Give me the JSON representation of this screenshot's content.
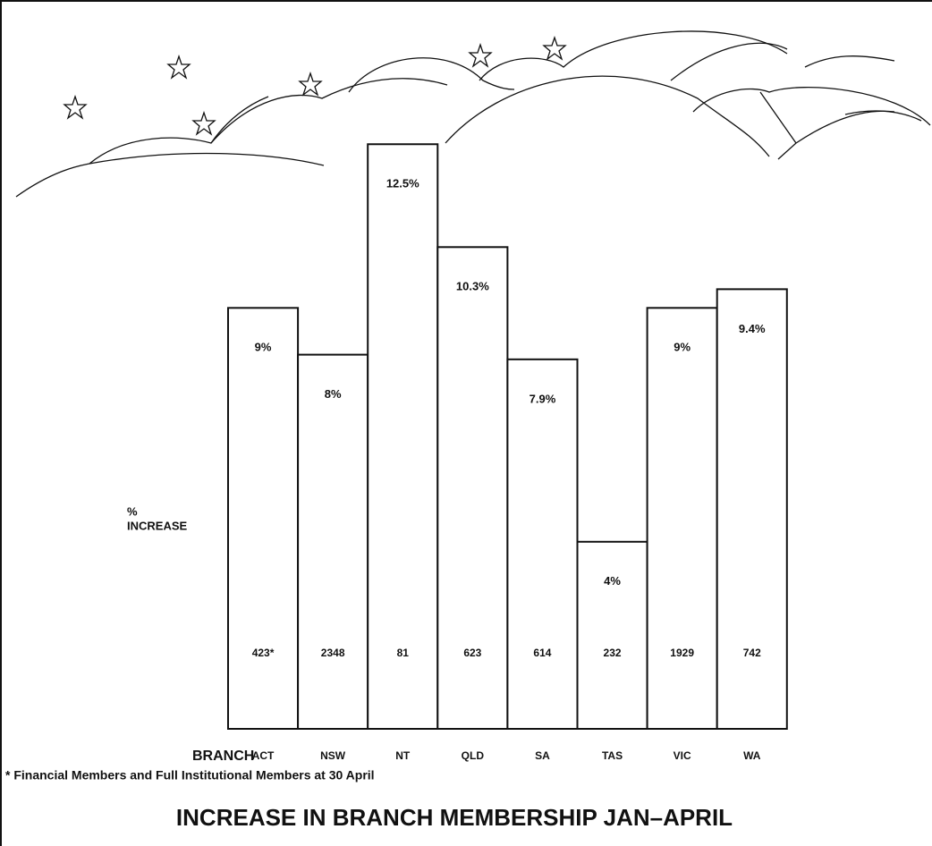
{
  "chart_data": {
    "type": "bar",
    "title": "INCREASE IN BRANCH MEMBERSHIP JAN–APRIL",
    "y_label": [
      "%",
      "INCREASE"
    ],
    "x_label": "BRANCH",
    "footnote": "* Financial Members and Full Institutional Members at 30 April",
    "categories": [
      "ACT",
      "NSW",
      "NT",
      "QLD",
      "SA",
      "TAS",
      "VIC",
      "WA"
    ],
    "values": [
      9,
      8,
      12.5,
      10.3,
      7.9,
      4,
      9,
      9.4
    ],
    "value_labels": [
      "9%",
      "8%",
      "12.5%",
      "10.3%",
      "7.9%",
      "4%",
      "9%",
      "9.4%"
    ],
    "member_counts": [
      "423*",
      "2348",
      "81",
      "623",
      "614",
      "232",
      "1929",
      "742"
    ],
    "color": "#ffffff"
  }
}
